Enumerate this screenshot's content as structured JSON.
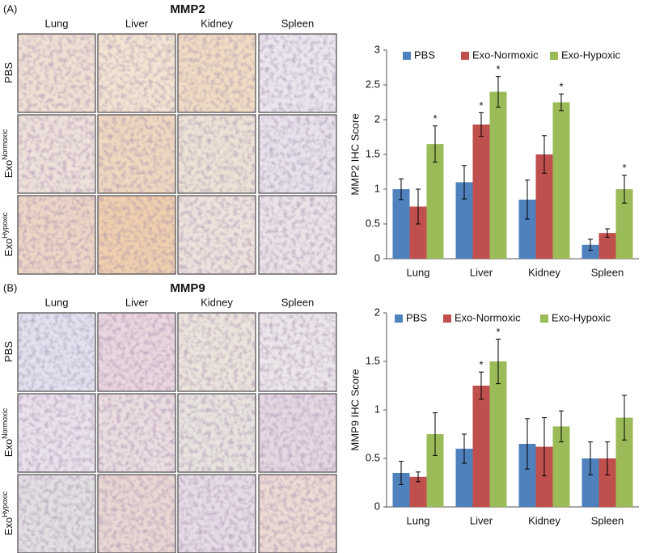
{
  "figure": {
    "panels": [
      {
        "label": "(A)",
        "title": "MMP2",
        "columns": [
          "Lung",
          "Liver",
          "Kidney",
          "Spleen"
        ],
        "rows": [
          {
            "text": "PBS"
          },
          {
            "text": "Exo",
            "sup": "Normoxic"
          },
          {
            "text": "Exo",
            "sup": "Hypoxic"
          }
        ]
      },
      {
        "label": "(B)",
        "title": "MMP9",
        "columns": [
          "Lung",
          "Liver",
          "Kidney",
          "Spleen"
        ],
        "rows": [
          {
            "text": "PBS"
          },
          {
            "text": "Exo",
            "sup": "Normoxic"
          },
          {
            "text": "Exo",
            "sup": "Hypoxic"
          }
        ]
      }
    ]
  },
  "chart_data": [
    {
      "type": "bar",
      "ylabel": "MMP2 IHC Score",
      "categories": [
        "Lung",
        "Liver",
        "Kidney",
        "Spleen"
      ],
      "series": [
        {
          "name": "PBS",
          "color": "#4f81bd",
          "values": [
            1.0,
            1.1,
            0.85,
            0.2
          ],
          "errors": [
            0.15,
            0.24,
            0.28,
            0.08
          ],
          "stars": [
            null,
            null,
            null,
            null
          ]
        },
        {
          "name": "Exo-Normoxic",
          "color": "#c0504d",
          "values": [
            0.75,
            1.93,
            1.5,
            0.37
          ],
          "errors": [
            0.25,
            0.17,
            0.27,
            0.06
          ],
          "stars": [
            null,
            "*",
            null,
            null
          ]
        },
        {
          "name": "Exo-Hypoxic",
          "color": "#9bbb59",
          "values": [
            1.65,
            2.4,
            2.25,
            1.0
          ],
          "errors": [
            0.26,
            0.22,
            0.12,
            0.2
          ],
          "stars": [
            "*",
            "*",
            "*",
            "*"
          ]
        }
      ],
      "ylim": [
        0,
        3
      ],
      "yticks": [
        0,
        0.5,
        1,
        1.5,
        2,
        2.5,
        3
      ],
      "legend": "top"
    },
    {
      "type": "bar",
      "ylabel": "MMP9 IHC Score",
      "categories": [
        "Lung",
        "Liver",
        "Kidney",
        "Spleen"
      ],
      "series": [
        {
          "name": "PBS",
          "color": "#4f81bd",
          "values": [
            0.35,
            0.6,
            0.65,
            0.5
          ],
          "errors": [
            0.12,
            0.15,
            0.26,
            0.17
          ],
          "stars": [
            null,
            null,
            null,
            null
          ]
        },
        {
          "name": "Exo-Normoxic",
          "color": "#c0504d",
          "values": [
            0.31,
            1.25,
            0.62,
            0.5
          ],
          "errors": [
            0.05,
            0.14,
            0.3,
            0.17
          ],
          "stars": [
            null,
            "*",
            null,
            null
          ]
        },
        {
          "name": "Exo-Hypoxic",
          "color": "#9bbb59",
          "values": [
            0.75,
            1.5,
            0.83,
            0.92
          ],
          "errors": [
            0.22,
            0.23,
            0.16,
            0.23
          ],
          "stars": [
            null,
            "*",
            null,
            null
          ]
        }
      ],
      "ylim": [
        0,
        2
      ],
      "yticks": [
        0,
        0.5,
        1,
        1.5,
        2
      ],
      "legend": "top"
    }
  ]
}
